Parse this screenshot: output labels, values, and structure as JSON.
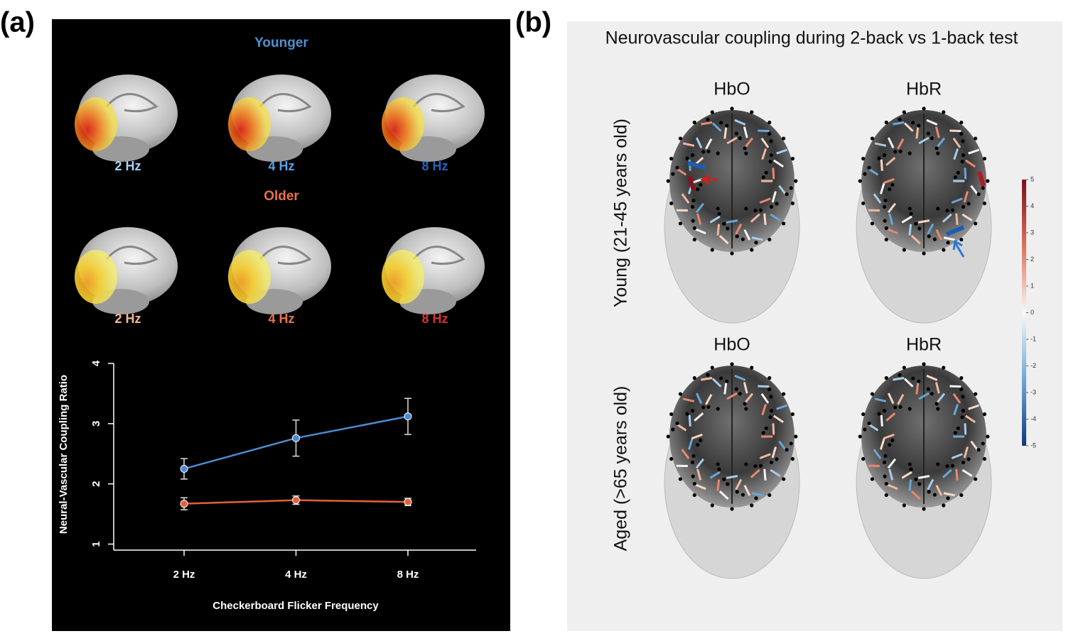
{
  "panel_a": {
    "label": "(a)",
    "groups": [
      {
        "name": "Younger",
        "conditions": [
          "2 Hz",
          "4 Hz",
          "8 Hz"
        ]
      },
      {
        "name": "Older",
        "conditions": [
          "2 Hz",
          "4 Hz",
          "8 Hz"
        ]
      }
    ]
  },
  "chart_data": {
    "type": "line",
    "ylabel": "Neural-Vascular Coupling Ratio",
    "xlabel": "Checkerboard Flicker Frequency",
    "categories": [
      "2 Hz",
      "4 Hz",
      "8 Hz"
    ],
    "series": [
      {
        "color": "#4a8ccf",
        "values": [
          2.25,
          2.76,
          3.12
        ],
        "errors": [
          0.17,
          0.3,
          0.3
        ]
      },
      {
        "color": "#e4603c",
        "values": [
          1.67,
          1.73,
          1.7
        ],
        "errors": [
          0.1,
          0.07,
          0.06
        ]
      }
    ],
    "ylim": [
      0.9,
      4.0
    ],
    "yticks": [
      1,
      2,
      3,
      4
    ]
  },
  "panel_b": {
    "label": "(b)",
    "title": "Neurovascular coupling during 2-back vs 1-back test",
    "columns": [
      "HbO",
      "HbR"
    ],
    "rows": [
      "Young (21-45 years old)",
      "Aged (>65 years old)"
    ],
    "colorbar": {
      "ylim": [
        -5,
        5
      ],
      "yticks": [
        5,
        4,
        3,
        2,
        1,
        0,
        -1,
        -2,
        -3,
        -4,
        -5
      ]
    }
  }
}
